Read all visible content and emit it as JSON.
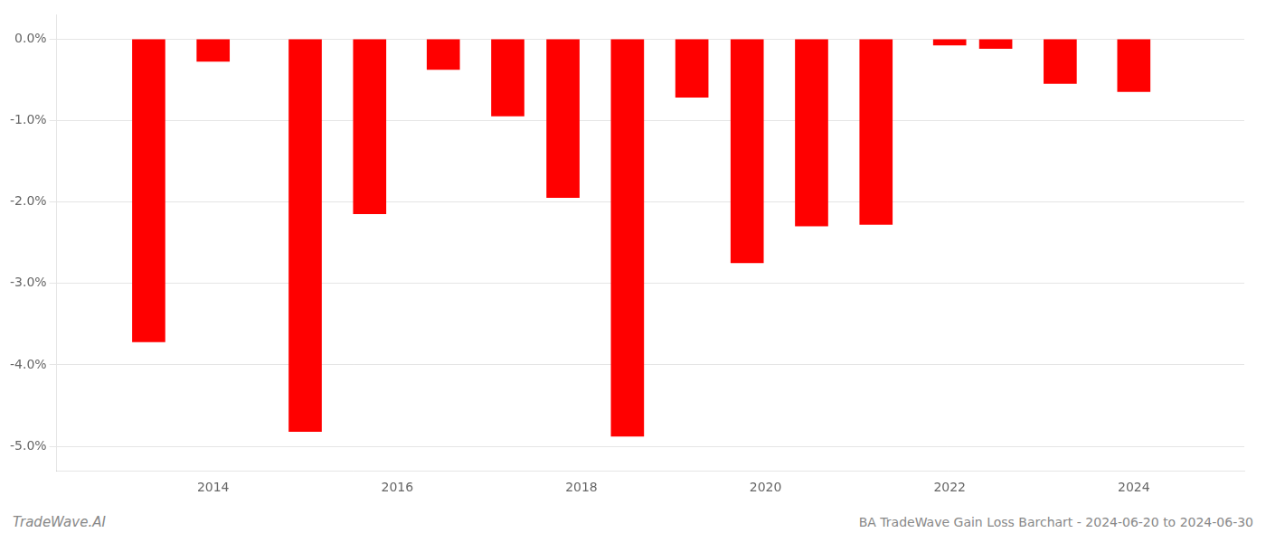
{
  "chart_data": {
    "type": "bar",
    "x": [
      2013.3,
      2014.0,
      2015.0,
      2015.7,
      2016.5,
      2017.2,
      2017.8,
      2018.5,
      2019.2,
      2019.8,
      2020.5,
      2021.2,
      2022.0,
      2022.5,
      2023.2,
      2024.0
    ],
    "values": [
      -3.72,
      -0.28,
      -4.82,
      -2.15,
      -0.38,
      -0.95,
      -1.95,
      -4.88,
      -0.72,
      -2.75,
      -2.3,
      -2.28,
      -0.08,
      -0.12,
      -0.55,
      -0.65
    ],
    "color": "#ff0000",
    "xlim": [
      2012.3,
      2025.2
    ],
    "xticks": [
      2014,
      2016,
      2018,
      2020,
      2022,
      2024
    ],
    "ylim": [
      -5.3,
      0.3
    ],
    "yticks": [
      {
        "value": 0.0,
        "label": "0.0%"
      },
      {
        "value": -1.0,
        "label": "-1.0%"
      },
      {
        "value": -2.0,
        "label": "-2.0%"
      },
      {
        "value": -3.0,
        "label": "-3.0%"
      },
      {
        "value": -4.0,
        "label": "-4.0%"
      },
      {
        "value": -5.0,
        "label": "-5.0%"
      }
    ],
    "grid": true,
    "annotations": [
      "TradeWave.AI",
      "BA TradeWave Gain Loss Barchart - 2024-06-20 to 2024-06-30"
    ]
  }
}
